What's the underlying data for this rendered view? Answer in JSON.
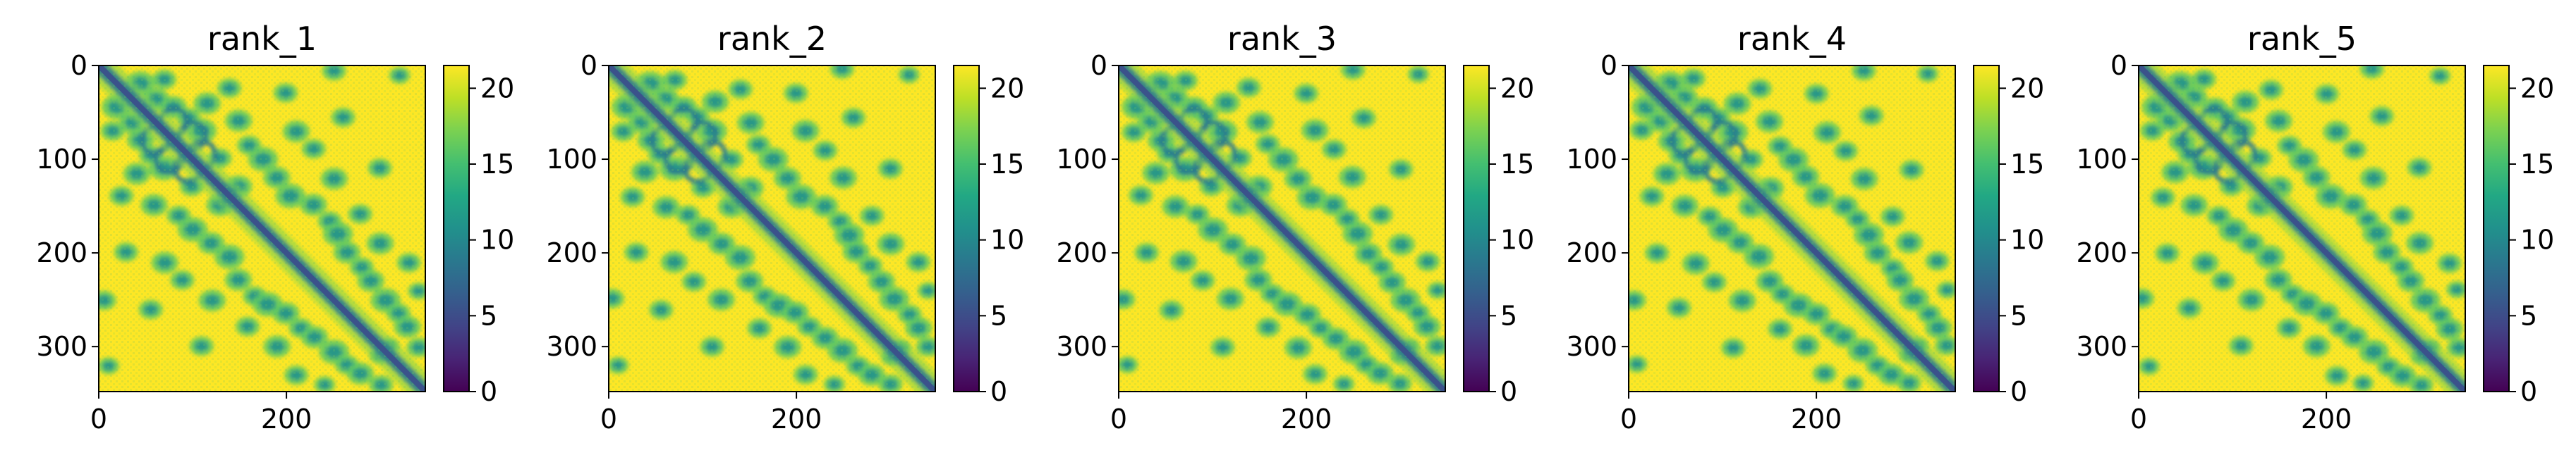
{
  "chart_data": {
    "type": "heatmap",
    "colormap": "viridis",
    "colorbar": {
      "vmin": 0,
      "vmax": 21.5,
      "ticks": [
        0,
        5,
        10,
        15,
        20
      ],
      "tick_labels": [
        "0",
        "5",
        "10",
        "15",
        "20"
      ]
    },
    "matrix_size": 348,
    "x_ticks": [
      0,
      200
    ],
    "x_tick_labels": [
      "0",
      "200"
    ],
    "y_ticks": [
      0,
      100,
      200,
      300
    ],
    "y_tick_labels": [
      "0",
      "100",
      "200",
      "300"
    ],
    "panels": [
      {
        "title": "rank_1"
      },
      {
        "title": "rank_2"
      },
      {
        "title": "rank_3"
      },
      {
        "title": "rank_4"
      },
      {
        "title": "rank_5"
      }
    ]
  }
}
